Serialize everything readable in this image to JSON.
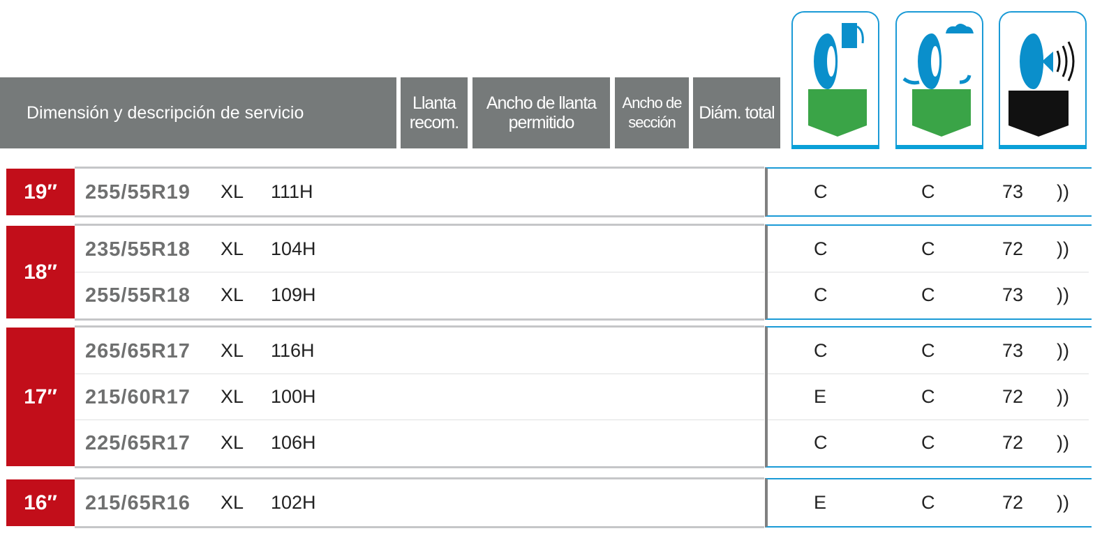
{
  "header": {
    "columns": [
      "Dimensión y descripción de servicio",
      "Llanta recom.",
      "Ancho de llanta permitido",
      "Ancho de sección",
      "Diám. total"
    ],
    "icons": [
      {
        "name": "fuel-efficiency-icon",
        "color": "#3aa447"
      },
      {
        "name": "wet-grip-icon",
        "color": "#3aa447"
      },
      {
        "name": "noise-icon",
        "color": "#111111"
      }
    ]
  },
  "groups": [
    {
      "rim": "19″",
      "rows": [
        {
          "size": "255/55R19",
          "xl": "XL",
          "service": "111H",
          "fuel": "C",
          "wet": "C",
          "noise": "73",
          "noise_class": "))"
        }
      ]
    },
    {
      "rim": "18″",
      "rows": [
        {
          "size": "235/55R18",
          "xl": "XL",
          "service": "104H",
          "fuel": "C",
          "wet": "C",
          "noise": "72",
          "noise_class": "))"
        },
        {
          "size": "255/55R18",
          "xl": "XL",
          "service": "109H",
          "fuel": "C",
          "wet": "C",
          "noise": "73",
          "noise_class": "))"
        }
      ]
    },
    {
      "rim": "17″",
      "rows": [
        {
          "size": "265/65R17",
          "xl": "XL",
          "service": "116H",
          "fuel": "C",
          "wet": "C",
          "noise": "73",
          "noise_class": "))"
        },
        {
          "size": "215/60R17",
          "xl": "XL",
          "service": "100H",
          "fuel": "E",
          "wet": "C",
          "noise": "72",
          "noise_class": "))"
        },
        {
          "size": "225/65R17",
          "xl": "XL",
          "service": "106H",
          "fuel": "C",
          "wet": "C",
          "noise": "72",
          "noise_class": "))"
        }
      ]
    },
    {
      "rim": "16″",
      "rows": [
        {
          "size": "215/65R16",
          "xl": "XL",
          "service": "102H",
          "fuel": "E",
          "wet": "C",
          "noise": "72",
          "noise_class": "))"
        }
      ]
    }
  ]
}
